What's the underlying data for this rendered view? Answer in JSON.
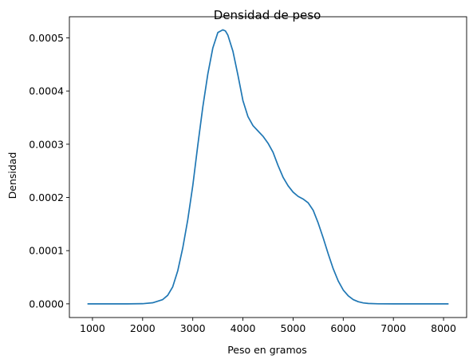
{
  "chart_data": {
    "type": "line",
    "title": "Densidad de peso",
    "xlabel": "Peso en gramos",
    "ylabel": "Densidad",
    "xlim": [
      540,
      8460
    ],
    "ylim": [
      -2.57e-05,
      0.0005396
    ],
    "xticks": [
      1000,
      2000,
      3000,
      4000,
      5000,
      6000,
      7000,
      8000
    ],
    "xtick_labels": [
      "1000",
      "2000",
      "3000",
      "4000",
      "5000",
      "6000",
      "7000",
      "8000"
    ],
    "yticks": [
      0.0,
      0.0001,
      0.0002,
      0.0003,
      0.0004,
      0.0005
    ],
    "ytick_labels": [
      "0.0000",
      "0.0001",
      "0.0002",
      "0.0003",
      "0.0004",
      "0.0005"
    ],
    "grid": false,
    "series": [
      {
        "color": "#1f77b4",
        "x": [
          900,
          1300,
          1700,
          2000,
          2200,
          2400,
          2500,
          2600,
          2700,
          2800,
          2900,
          3000,
          3100,
          3200,
          3300,
          3400,
          3500,
          3600,
          3650,
          3700,
          3800,
          3900,
          4000,
          4100,
          4200,
          4300,
          4400,
          4500,
          4600,
          4700,
          4800,
          4900,
          5000,
          5100,
          5200,
          5300,
          5400,
          5500,
          5600,
          5700,
          5800,
          5900,
          6000,
          6100,
          6200,
          6300,
          6400,
          6500,
          6700,
          7000,
          7500,
          8100
        ],
        "y": [
          0.0,
          0.0,
          0.0,
          3e-07,
          2e-06,
          8e-06,
          1.6e-05,
          3.2e-05,
          6.2e-05,
          0.000105,
          0.000158,
          0.000222,
          0.000298,
          0.00037,
          0.000432,
          0.000481,
          0.00051,
          0.000515,
          0.000513,
          0.000505,
          0.000475,
          0.00043,
          0.000382,
          0.000352,
          0.000335,
          0.000325,
          0.000315,
          0.000302,
          0.000285,
          0.00026,
          0.000238,
          0.000222,
          0.00021,
          0.000202,
          0.000197,
          0.00019,
          0.000176,
          0.000152,
          0.000124,
          9.4e-05,
          6.6e-05,
          4.3e-05,
          2.6e-05,
          1.5e-05,
          8e-06,
          4e-06,
          1.8e-06,
          7e-07,
          1e-07,
          0.0,
          0.0,
          0.0
        ]
      }
    ]
  }
}
